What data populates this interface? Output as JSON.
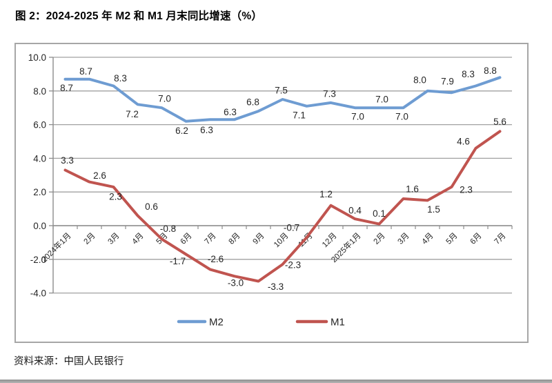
{
  "header": {
    "title": "图 2：2024-2025 年 M2 和 M1 月末同比增速（%）"
  },
  "footer": {
    "source": "资料来源：中国人民银行"
  },
  "chart_data": {
    "type": "line",
    "title": "2024-2025 年 M2 和 M1 月末同比增速（%）",
    "categories": [
      "2024年1月",
      "2月",
      "3月",
      "4月",
      "5月",
      "6月",
      "7月",
      "8月",
      "9月",
      "10月",
      "11月",
      "12月",
      "2025年1月",
      "2月",
      "3月",
      "4月",
      "5月",
      "6月",
      "7月"
    ],
    "series": [
      {
        "name": "M2",
        "color": "#6E9CD2",
        "values": [
          8.7,
          8.7,
          8.3,
          7.2,
          7.0,
          6.2,
          6.3,
          6.3,
          6.8,
          7.5,
          7.1,
          7.3,
          7.0,
          7.0,
          7.0,
          8.0,
          7.9,
          8.3,
          8.8
        ],
        "label_offsets": [
          [
            2,
            13
          ],
          [
            -5,
            -11
          ],
          [
            10,
            -11
          ],
          [
            -8,
            14
          ],
          [
            4,
            -13
          ],
          [
            -6,
            14
          ],
          [
            -5,
            15
          ],
          [
            -6,
            -11
          ],
          [
            -8,
            -13
          ],
          [
            -2,
            -13
          ],
          [
            -11,
            13
          ],
          [
            -2,
            -13
          ],
          [
            4,
            13
          ],
          [
            4,
            -12
          ],
          [
            -2,
            13
          ],
          [
            -11,
            -16
          ],
          [
            -6,
            -16
          ],
          [
            -11,
            -17
          ],
          [
            -14,
            -10
          ]
        ]
      },
      {
        "name": "M1",
        "color": "#C0544F",
        "values": [
          3.3,
          2.6,
          2.3,
          0.6,
          -0.8,
          -1.7,
          -2.6,
          -3.0,
          -3.3,
          -2.3,
          -0.7,
          1.2,
          0.4,
          0.1,
          1.6,
          1.5,
          2.3,
          4.6,
          5.6
        ],
        "label_offsets": [
          [
            3,
            -14
          ],
          [
            15,
            -9
          ],
          [
            3,
            14
          ],
          [
            20,
            -13
          ],
          [
            9,
            -15
          ],
          [
            -12,
            10
          ],
          [
            8,
            -15
          ],
          [
            2,
            10
          ],
          [
            25,
            8
          ],
          [
            15,
            1
          ],
          [
            -22,
            -14
          ],
          [
            -7,
            -16
          ],
          [
            0,
            -12
          ],
          [
            0,
            -15
          ],
          [
            13,
            -14
          ],
          [
            9,
            13
          ],
          [
            21,
            4
          ],
          [
            -18,
            -10
          ],
          [
            0,
            -14
          ]
        ]
      }
    ],
    "ylim": [
      -4,
      10
    ],
    "ytick_step": 2,
    "ytick_labels": [
      "10.0",
      "8.0",
      "6.0",
      "4.0",
      "2.0",
      "0.0",
      "-2.0",
      "-4.0"
    ],
    "grid": true,
    "legend_position": "bottom-center",
    "value_labels_shown": true,
    "axis_color": "#8c8c8c",
    "gridline_color": "#a0a0a0",
    "label_text_color": "#262626"
  }
}
